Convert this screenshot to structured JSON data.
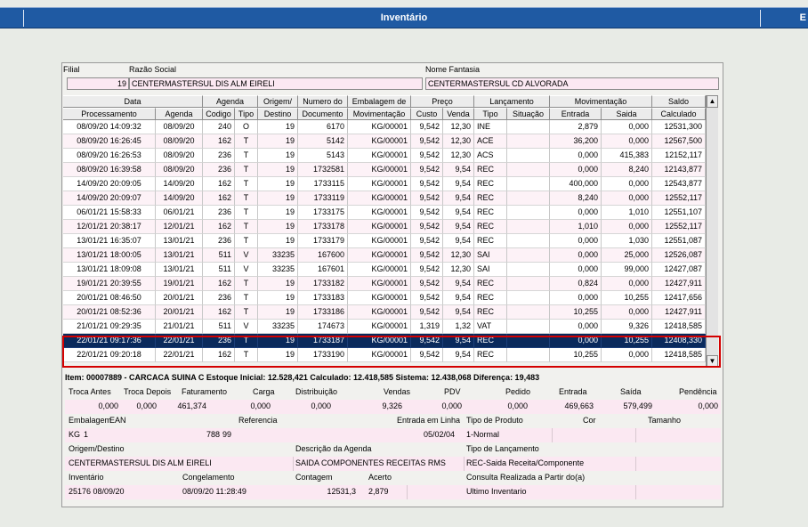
{
  "window": {
    "title": "Inventário",
    "right_tab": "E"
  },
  "header": {
    "filial_label": "Filial",
    "razao_label": "Razão Social",
    "fantasia_label": "Nome Fantasia",
    "filial_value": "19",
    "razao_value": "CENTERMASTERSUL DIS ALM EIRELI",
    "fantasia_value": "CENTERMASTERSUL CD ALVORADA"
  },
  "grid": {
    "header_groups": [
      "Data",
      "Agenda",
      "Origem/",
      "Numero do",
      "Embalagem de",
      "Preço",
      "Lançamento",
      "Movimentação",
      "Saldo"
    ],
    "columns": [
      "Processamento",
      "Agenda",
      "Codigo",
      "Tipo",
      "Destino",
      "Documento",
      "Movimentação",
      "Custo",
      "Venda",
      "Tipo",
      "Situação",
      "Entrada",
      "Saida",
      "Calculado"
    ],
    "rows": [
      [
        "08/09/20 14:09:32",
        "08/09/20",
        "240",
        "O",
        "19",
        "6170",
        "KG/00001",
        "9,542",
        "12,30",
        "INE",
        "",
        "2,879",
        "0,000",
        "12531,300"
      ],
      [
        "08/09/20 16:26:45",
        "08/09/20",
        "162",
        "T",
        "19",
        "5142",
        "KG/00001",
        "9,542",
        "12,30",
        "ACE",
        "",
        "36,200",
        "0,000",
        "12567,500"
      ],
      [
        "08/09/20 16:26:53",
        "08/09/20",
        "236",
        "T",
        "19",
        "5143",
        "KG/00001",
        "9,542",
        "12,30",
        "ACS",
        "",
        "0,000",
        "415,383",
        "12152,117"
      ],
      [
        "08/09/20 16:39:58",
        "08/09/20",
        "236",
        "T",
        "19",
        "1732581",
        "KG/00001",
        "9,542",
        "9,54",
        "REC",
        "",
        "0,000",
        "8,240",
        "12143,877"
      ],
      [
        "14/09/20 20:09:05",
        "14/09/20",
        "162",
        "T",
        "19",
        "1733115",
        "KG/00001",
        "9,542",
        "9,54",
        "REC",
        "",
        "400,000",
        "0,000",
        "12543,877"
      ],
      [
        "14/09/20 20:09:07",
        "14/09/20",
        "162",
        "T",
        "19",
        "1733119",
        "KG/00001",
        "9,542",
        "9,54",
        "REC",
        "",
        "8,240",
        "0,000",
        "12552,117"
      ],
      [
        "06/01/21 15:58:33",
        "06/01/21",
        "236",
        "T",
        "19",
        "1733175",
        "KG/00001",
        "9,542",
        "9,54",
        "REC",
        "",
        "0,000",
        "1,010",
        "12551,107"
      ],
      [
        "12/01/21 20:38:17",
        "12/01/21",
        "162",
        "T",
        "19",
        "1733178",
        "KG/00001",
        "9,542",
        "9,54",
        "REC",
        "",
        "1,010",
        "0,000",
        "12552,117"
      ],
      [
        "13/01/21 16:35:07",
        "13/01/21",
        "236",
        "T",
        "19",
        "1733179",
        "KG/00001",
        "9,542",
        "9,54",
        "REC",
        "",
        "0,000",
        "1,030",
        "12551,087"
      ],
      [
        "13/01/21 18:00:05",
        "13/01/21",
        "511",
        "V",
        "33235",
        "167600",
        "KG/00001",
        "9,542",
        "12,30",
        "SAI",
        "",
        "0,000",
        "25,000",
        "12526,087"
      ],
      [
        "13/01/21 18:09:08",
        "13/01/21",
        "511",
        "V",
        "33235",
        "167601",
        "KG/00001",
        "9,542",
        "12,30",
        "SAI",
        "",
        "0,000",
        "99,000",
        "12427,087"
      ],
      [
        "19/01/21 20:39:55",
        "19/01/21",
        "162",
        "T",
        "19",
        "1733182",
        "KG/00001",
        "9,542",
        "9,54",
        "REC",
        "",
        "0,824",
        "0,000",
        "12427,911"
      ],
      [
        "20/01/21 08:46:50",
        "20/01/21",
        "236",
        "T",
        "19",
        "1733183",
        "KG/00001",
        "9,542",
        "9,54",
        "REC",
        "",
        "0,000",
        "10,255",
        "12417,656"
      ],
      [
        "20/01/21 08:52:36",
        "20/01/21",
        "162",
        "T",
        "19",
        "1733186",
        "KG/00001",
        "9,542",
        "9,54",
        "REC",
        "",
        "10,255",
        "0,000",
        "12427,911"
      ],
      [
        "21/01/21 09:29:35",
        "21/01/21",
        "511",
        "V",
        "33235",
        "174673",
        "KG/00001",
        "1,319",
        "1,32",
        "VAT",
        "",
        "0,000",
        "9,326",
        "12418,585"
      ],
      [
        "22/01/21 09:17:36",
        "22/01/21",
        "236",
        "T",
        "19",
        "1733187",
        "KG/00001",
        "9,542",
        "9,54",
        "REC",
        "",
        "0,000",
        "10,255",
        "12408,330"
      ],
      [
        "22/01/21 09:20:18",
        "22/01/21",
        "162",
        "T",
        "19",
        "1733190",
        "KG/00001",
        "9,542",
        "9,54",
        "REC",
        "",
        "10,255",
        "0,000",
        "12418,585"
      ]
    ],
    "selected_row": 15
  },
  "summary": {
    "info_line": "Item: 00007889 - CARCACA SUINA C  Estoque Inicial: 12.528,421  Calculado: 12.418,585  Sistema: 12.438,068  Diferença: 19,483",
    "labels": [
      "Troca Antes",
      "Troca Depois",
      "Faturamento",
      "Carga",
      "Distribuição",
      "Vendas",
      "PDV",
      "Pedido",
      "Entrada",
      "Saída",
      "Pendência"
    ],
    "values": [
      "0,000",
      "0,000",
      "461,374",
      "0,000",
      "0,000",
      "9,326",
      "0,000",
      "0,000",
      "469,663",
      "579,499",
      "0,000"
    ]
  },
  "details": {
    "embalagem_label": "Embalagem",
    "ean_label": "EAN",
    "referencia_label": "Referencia",
    "entrada_linha_label": "Entrada em Linha",
    "tipo_produto_label": "Tipo de Produto",
    "cor_label": "Cor",
    "tamanho_label": "Tamanho",
    "embalagem": "KG",
    "embalagem_qtd": "1",
    "ean": "788",
    "referencia": "99",
    "entrada_linha": "05/02/04",
    "tipo_produto": "1-Normal",
    "origem_label": "Origem/Destino",
    "desc_agenda_label": "Descrição da Agenda",
    "tipo_lanc_label": "Tipo de Lançamento",
    "origem": "CENTERMASTERSUL DIS ALM EIRELI",
    "desc_agenda": "SAIDA COMPONENTES RECEITAS RMS",
    "tipo_lanc": "REC-Saida Receita/Componente",
    "inventario_label": "Inventário",
    "congelamento_label": "Congelamento",
    "contagem_label": "Contagem",
    "acerto_label": "Acerto",
    "consulta_label": "Consulta Realizada a Partir do(a)",
    "inventario": "25176 08/09/20",
    "congelamento": "08/09/20 11:28:49",
    "contagem": "12531,3",
    "acerto": "2,879",
    "consulta": "Ultimo Inventario"
  }
}
